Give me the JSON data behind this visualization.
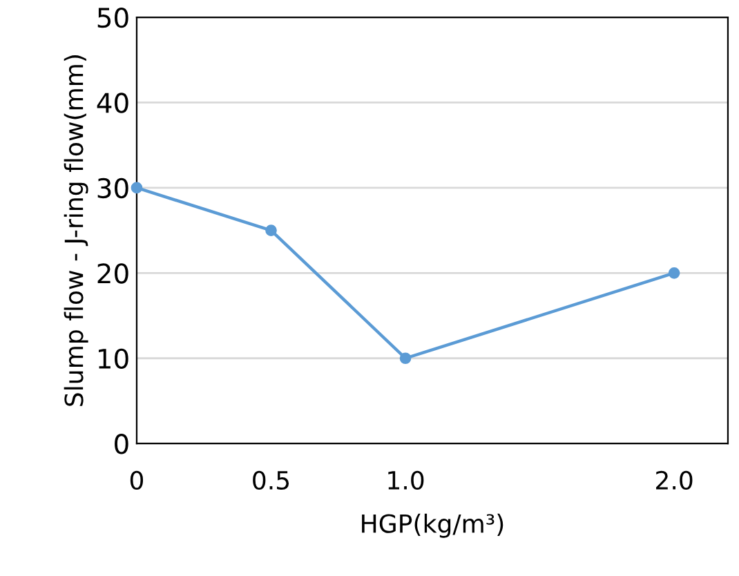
{
  "chart_data": {
    "type": "line",
    "xlabel": "HGP(kg/m³)",
    "ylabel": "Slump flow - J-ring flow(mm)",
    "x": [
      0,
      0.5,
      1.0,
      2.0
    ],
    "series": [
      {
        "color": "#5b9bd5",
        "values": [
          30,
          25,
          10,
          20
        ]
      }
    ],
    "xlim": [
      0,
      2.2
    ],
    "xticks": [
      0,
      {
        "value": 0.5,
        "label": "0.5"
      },
      {
        "value": 1.0,
        "label": "1.0"
      },
      {
        "value": 2.0,
        "label": "2.0"
      }
    ],
    "ylim": [
      0,
      50
    ],
    "yticks": [
      0,
      10,
      20,
      30,
      40,
      50
    ],
    "grid": "y",
    "marker": "circle",
    "line_style": "solid",
    "legend": false
  }
}
